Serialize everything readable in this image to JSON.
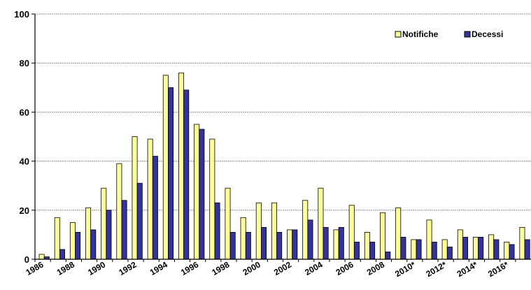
{
  "chart_data": {
    "type": "bar",
    "title": "",
    "xlabel": "",
    "ylabel": "",
    "categories": [
      "1986",
      "1987",
      "1988",
      "1989",
      "1990",
      "1991",
      "1992",
      "1993",
      "1994",
      "1995",
      "1996",
      "1997",
      "1998",
      "1999",
      "2000",
      "2001",
      "2002",
      "2003",
      "2004",
      "2005",
      "2006",
      "2007",
      "2008",
      "2009",
      "2010*",
      "2011*",
      "2012*",
      "2013*",
      "2014*",
      "2015*",
      "2016*",
      "2017*"
    ],
    "tick_labels": [
      "1986",
      "1988",
      "1990",
      "1992",
      "1994",
      "1996",
      "1998",
      "2000",
      "2002",
      "2004",
      "2006",
      "2008",
      "2010*",
      "2012*",
      "2014*",
      "2016*"
    ],
    "ylim": [
      0,
      100
    ],
    "yticks": [
      0,
      20,
      40,
      60,
      80,
      100
    ],
    "grid": true,
    "legend_position": "top-right",
    "series": [
      {
        "name": "Notifiche",
        "color": "#FFFF99",
        "values": [
          2,
          17,
          15,
          21,
          29,
          39,
          50,
          49,
          75,
          76,
          55,
          49,
          29,
          17,
          23,
          23,
          12,
          24,
          29,
          12,
          22,
          11,
          19,
          21,
          8,
          16,
          8,
          12,
          9,
          10,
          7,
          13
        ]
      },
      {
        "name": "Decessi",
        "color": "#333399",
        "values": [
          1,
          4,
          11,
          12,
          20,
          24,
          31,
          42,
          70,
          69,
          53,
          23,
          11,
          11,
          13,
          11,
          12,
          16,
          13,
          13,
          7,
          7,
          3,
          9,
          8,
          7,
          5,
          9,
          9,
          8,
          6,
          8
        ]
      }
    ]
  }
}
